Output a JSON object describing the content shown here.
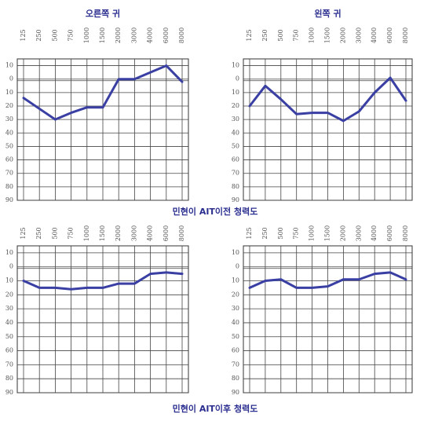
{
  "chart_data": [
    {
      "type": "line",
      "title": "오른쪽 귀",
      "categories": [
        "125",
        "250",
        "500",
        "750",
        "1000",
        "1500",
        "2000",
        "3000",
        "4000",
        "6000",
        "8000"
      ],
      "values": [
        14,
        22,
        30,
        25,
        21,
        21,
        0,
        0,
        -5,
        -10,
        2
      ],
      "color": "#3a3fa3",
      "ylim": [
        -15,
        90
      ],
      "y_inverted": true,
      "grid": true,
      "yticks": [
        {
          "value": -10,
          "label": "10"
        },
        0,
        10,
        20,
        30,
        40,
        50,
        60,
        70,
        80,
        90
      ]
    },
    {
      "type": "line",
      "title": "왼쪽 귀",
      "categories": [
        "125",
        "250",
        "500",
        "750",
        "1000",
        "1500",
        "2000",
        "3000",
        "4000",
        "6000",
        "8000"
      ],
      "values": [
        20,
        5,
        15,
        26,
        25,
        25,
        31,
        24,
        10,
        -1,
        16
      ],
      "color": "#3a3fa3",
      "ylim": [
        -15,
        90
      ],
      "y_inverted": true,
      "grid": true,
      "yticks": [
        {
          "value": -10,
          "label": "10"
        },
        0,
        10,
        20,
        30,
        40,
        50,
        60,
        70,
        80,
        90
      ]
    },
    {
      "type": "line",
      "categories": [
        "125",
        "250",
        "500",
        "750",
        "1000",
        "1500",
        "2000",
        "3000",
        "4000",
        "6000",
        "8000"
      ],
      "values": [
        10,
        15,
        15,
        16,
        15,
        15,
        12,
        12,
        5,
        4,
        5
      ],
      "color": "#3a3fa3",
      "ylim": [
        -15,
        90
      ],
      "y_inverted": true,
      "grid": true,
      "yticks": [
        {
          "value": -10,
          "label": "10"
        },
        0,
        10,
        20,
        30,
        40,
        50,
        60,
        70,
        80,
        90
      ]
    },
    {
      "type": "line",
      "categories": [
        "125",
        "250",
        "500",
        "750",
        "1000",
        "1500",
        "2000",
        "3000",
        "4000",
        "6000",
        "8000"
      ],
      "values": [
        15,
        10,
        9,
        15,
        15,
        14,
        9,
        9,
        5,
        4,
        9
      ],
      "color": "#3a3fa3",
      "ylim": [
        -15,
        90
      ],
      "y_inverted": true,
      "grid": true,
      "yticks": [
        {
          "value": -10,
          "label": "10"
        },
        0,
        10,
        20,
        30,
        40,
        50,
        60,
        70,
        80,
        90
      ]
    }
  ],
  "captions": [
    "민현이 AIT이전 청력도",
    "민현이 AIT이후 청력도"
  ]
}
